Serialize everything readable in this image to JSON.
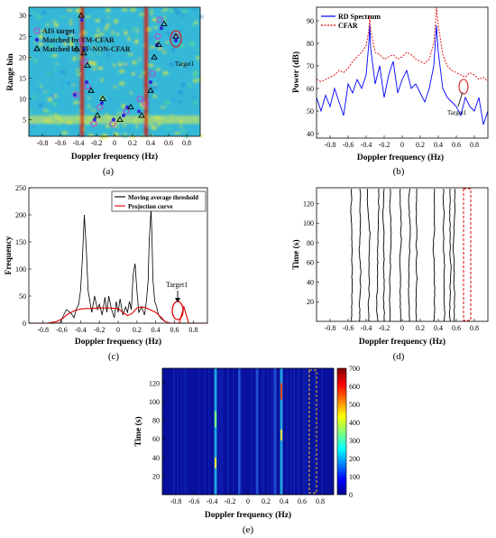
{
  "chart_data": [
    {
      "panel": "(a)",
      "type": "heatmap",
      "xlabel": "Doppler frequency (Hz)",
      "ylabel": "Range bin",
      "xlim": [
        -0.95,
        0.95
      ],
      "ylim": [
        1,
        32
      ],
      "xticks": [
        "-0.8",
        "-0.6",
        "-0.4",
        "-0.2",
        "0",
        "0.2",
        "0.4",
        "0.6",
        "0.8"
      ],
      "yticks": [
        "5",
        "10",
        "15",
        "20",
        "25",
        "30"
      ],
      "legend": {
        "placement": "top-left",
        "entries": [
          "AIS target",
          "Matched by TM-CFAR",
          "Matched by TF-NON-CFAR"
        ]
      },
      "annotation": "Target1",
      "colors": {
        "background": "#35b8d8",
        "hot": "#e0e020",
        "line": "#d62010"
      },
      "strong_lines_x": [
        -0.36,
        0.35
      ],
      "series": [
        {
          "name": "AIS target",
          "marker": "circle",
          "color": "#c040d0",
          "points": [
            [
              -0.43,
              11
            ],
            [
              -0.36,
              24
            ],
            [
              -0.33,
              19
            ],
            [
              -0.3,
              13
            ],
            [
              -0.23,
              4
            ],
            [
              -0.16,
              8
            ],
            [
              -0.02,
              4
            ],
            [
              0.13,
              7
            ],
            [
              0.28,
              10
            ],
            [
              0.34,
              9
            ],
            [
              0.42,
              16
            ],
            [
              0.48,
              25
            ],
            [
              0.5,
              29
            ],
            [
              0.68,
              25
            ]
          ]
        },
        {
          "name": "Matched by TM-CFAR",
          "marker": "dot",
          "color": "#3028d8",
          "points": [
            [
              -0.44,
              11
            ],
            [
              -0.34,
              22
            ],
            [
              -0.31,
              14
            ],
            [
              -0.22,
              5
            ],
            [
              -0.14,
              9
            ],
            [
              -0.01,
              5
            ],
            [
              0.14,
              8
            ],
            [
              0.27,
              7
            ],
            [
              0.4,
              14
            ],
            [
              0.47,
              23
            ],
            [
              0.52,
              27
            ],
            [
              0.68,
              24
            ],
            [
              -0.36,
              29
            ],
            [
              0.1,
              6
            ]
          ]
        },
        {
          "name": "Matched by TF-NON-CFAR",
          "marker": "triangle",
          "color": "#000000",
          "points": [
            [
              -0.37,
              30
            ],
            [
              -0.34,
              21
            ],
            [
              -0.3,
              18
            ],
            [
              -0.26,
              12
            ],
            [
              -0.19,
              6
            ],
            [
              -0.13,
              10
            ],
            [
              0.06,
              5
            ],
            [
              0.18,
              8
            ],
            [
              0.3,
              6
            ],
            [
              0.4,
              12
            ],
            [
              0.44,
              20
            ],
            [
              0.49,
              23
            ],
            [
              0.55,
              28
            ],
            [
              0.68,
              25
            ],
            [
              -0.42,
              22
            ]
          ]
        }
      ]
    },
    {
      "panel": "(b)",
      "type": "line",
      "xlabel": "Doppler frequency (Hz)",
      "ylabel": "Power (dB)",
      "xlim": [
        -0.95,
        0.95
      ],
      "ylim": [
        38,
        96
      ],
      "xticks": [
        "-0.8",
        "-0.6",
        "-0.4",
        "-0.2",
        "0",
        "0.2",
        "0.4",
        "0.6",
        "0.8"
      ],
      "yticks": [
        "40",
        "50",
        "60",
        "70",
        "80",
        "90"
      ],
      "legend": {
        "placement": "top-left"
      },
      "annotation": "Target1",
      "series": [
        {
          "name": "RD Spectrum",
          "color": "#0000ff",
          "style": "solid",
          "x": [
            -0.95,
            -0.9,
            -0.85,
            -0.8,
            -0.75,
            -0.7,
            -0.65,
            -0.6,
            -0.55,
            -0.5,
            -0.45,
            -0.4,
            -0.37,
            -0.36,
            -0.35,
            -0.3,
            -0.25,
            -0.2,
            -0.15,
            -0.1,
            -0.05,
            0,
            0.05,
            0.1,
            0.15,
            0.2,
            0.25,
            0.3,
            0.35,
            0.37,
            0.38,
            0.4,
            0.45,
            0.5,
            0.55,
            0.6,
            0.65,
            0.7,
            0.75,
            0.8,
            0.85,
            0.9,
            0.95
          ],
          "y": [
            56,
            50,
            57,
            52,
            60,
            54,
            48,
            62,
            58,
            64,
            60,
            66,
            80,
            88,
            78,
            62,
            70,
            56,
            66,
            72,
            58,
            64,
            68,
            60,
            62,
            58,
            54,
            60,
            70,
            82,
            88,
            76,
            60,
            56,
            54,
            52,
            48,
            56,
            52,
            50,
            56,
            44,
            50
          ]
        },
        {
          "name": "CFAR",
          "color": "#e00000",
          "style": "dashed",
          "x": [
            -0.95,
            -0.9,
            -0.85,
            -0.8,
            -0.75,
            -0.7,
            -0.65,
            -0.6,
            -0.55,
            -0.5,
            -0.45,
            -0.4,
            -0.37,
            -0.36,
            -0.35,
            -0.3,
            -0.25,
            -0.2,
            -0.15,
            -0.1,
            -0.05,
            0,
            0.05,
            0.1,
            0.15,
            0.2,
            0.25,
            0.3,
            0.35,
            0.37,
            0.38,
            0.4,
            0.45,
            0.5,
            0.55,
            0.6,
            0.65,
            0.7,
            0.75,
            0.8,
            0.85,
            0.9,
            0.95
          ],
          "y": [
            64,
            63,
            64,
            65,
            66,
            68,
            67,
            69,
            72,
            74,
            76,
            79,
            86,
            92,
            86,
            76,
            75,
            73,
            74,
            75,
            73,
            74,
            76,
            75,
            73,
            72,
            71,
            73,
            80,
            90,
            96,
            88,
            75,
            70,
            68,
            67,
            66,
            65,
            67,
            66,
            64,
            65,
            63
          ]
        }
      ]
    },
    {
      "panel": "(c)",
      "type": "line",
      "xlabel": "Doppler frequency (Hz)",
      "ylabel": "Frequency",
      "xlim": [
        -0.95,
        0.95
      ],
      "ylim": [
        0,
        250
      ],
      "xticks": [
        "-0.8",
        "-0.6",
        "-0.4",
        "-0.2",
        "0",
        "0.2",
        "0.4",
        "0.6",
        "0.8"
      ],
      "yticks": [
        "0",
        "50",
        "100",
        "150",
        "200",
        "250"
      ],
      "legend": {
        "placement": "top-right"
      },
      "annotation": "Target1",
      "series": [
        {
          "name": "Moving average threshold",
          "color": "#000000",
          "x": [
            -0.95,
            -0.8,
            -0.62,
            -0.58,
            -0.55,
            -0.5,
            -0.47,
            -0.44,
            -0.42,
            -0.4,
            -0.38,
            -0.36,
            -0.34,
            -0.32,
            -0.3,
            -0.28,
            -0.25,
            -0.22,
            -0.2,
            -0.17,
            -0.14,
            -0.12,
            -0.1,
            -0.07,
            -0.04,
            -0.02,
            0,
            0.02,
            0.05,
            0.08,
            0.1,
            0.12,
            0.14,
            0.16,
            0.18,
            0.2,
            0.22,
            0.25,
            0.28,
            0.3,
            0.32,
            0.33,
            0.35,
            0.36,
            0.37,
            0.39,
            0.41,
            0.43,
            0.46,
            0.5,
            0.55,
            0.6,
            0.7,
            0.8,
            0.95
          ],
          "y": [
            0,
            0,
            0,
            15,
            25,
            18,
            10,
            28,
            35,
            60,
            120,
            200,
            140,
            60,
            40,
            20,
            50,
            25,
            35,
            15,
            48,
            20,
            50,
            25,
            10,
            40,
            20,
            45,
            15,
            30,
            20,
            40,
            25,
            90,
            110,
            60,
            20,
            30,
            15,
            40,
            80,
            150,
            210,
            160,
            80,
            40,
            30,
            15,
            8,
            3,
            0,
            0,
            0,
            0,
            0
          ]
        },
        {
          "name": "Projection curve",
          "color": "#e00000",
          "x": [
            -0.95,
            -0.85,
            -0.75,
            -0.65,
            -0.58,
            -0.55,
            -0.5,
            -0.45,
            -0.4,
            -0.35,
            -0.3,
            -0.2,
            -0.1,
            0,
            0.05,
            0.1,
            0.15,
            0.2,
            0.25,
            0.3,
            0.35,
            0.4,
            0.45,
            0.5,
            0.55,
            0.6,
            0.65,
            0.7,
            0.75,
            0.8,
            0.85,
            0.9,
            0.95
          ],
          "y": [
            0,
            0,
            0,
            3,
            10,
            15,
            20,
            24,
            26,
            27,
            27,
            28,
            28,
            27,
            20,
            14,
            18,
            28,
            30,
            28,
            24,
            20,
            12,
            3,
            0,
            0,
            0,
            30,
            0,
            0,
            0,
            0,
            0
          ]
        }
      ]
    },
    {
      "panel": "(d)",
      "type": "line",
      "xlabel": "Doppler frequency (Hz)",
      "ylabel": "Time (s)",
      "xlim": [
        -0.95,
        0.95
      ],
      "ylim": [
        0,
        136
      ],
      "xticks": [
        "-0.8",
        "-0.6",
        "-0.4",
        "-0.2",
        "0",
        "0.2",
        "0.4",
        "0.6",
        "0.8"
      ],
      "yticks": [
        "20",
        "40",
        "60",
        "80",
        "100",
        "120"
      ],
      "track_centers_hz": [
        -0.56,
        -0.47,
        -0.37,
        -0.27,
        -0.2,
        -0.13,
        -0.02,
        0.08,
        0.16,
        0.35,
        0.46,
        0.53,
        0.58
      ],
      "target_box_hz": [
        0.68,
        0.76
      ]
    },
    {
      "panel": "(e)",
      "type": "heatmap",
      "xlabel": "Doppler frequency (Hz)",
      "ylabel": "Time (s)",
      "xlim": [
        -0.95,
        0.95
      ],
      "ylim": [
        0,
        136
      ],
      "xticks": [
        "-0.8",
        "-0.6",
        "-0.4",
        "-0.2",
        "0",
        "0.2",
        "0.4",
        "0.6",
        "0.8"
      ],
      "yticks": [
        "20",
        "40",
        "60",
        "80",
        "100",
        "120"
      ],
      "colorbar": {
        "range": [
          0,
          700
        ],
        "ticks": [
          "0",
          "100",
          "200",
          "300",
          "400",
          "500",
          "600",
          "700"
        ]
      },
      "strong_lines_x": [
        -0.36,
        0.37
      ],
      "weak_lines_x": [
        -0.1,
        0.1,
        0.3
      ],
      "target_box_hz": [
        0.68,
        0.76
      ]
    }
  ],
  "figure": {
    "captions": [
      "(a)",
      "(b)",
      "(c)",
      "(d)",
      "(e)"
    ]
  }
}
